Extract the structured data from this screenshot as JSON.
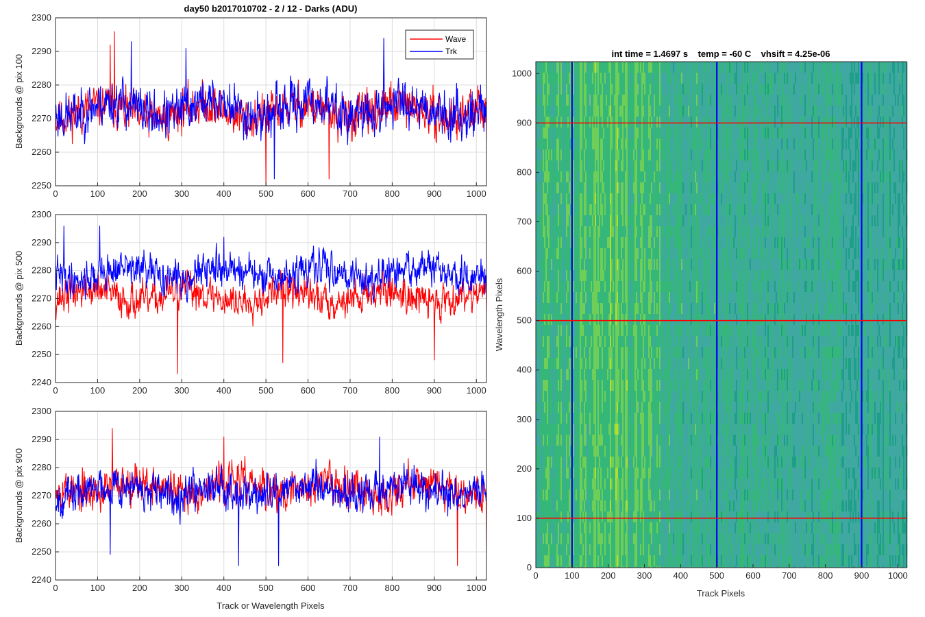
{
  "figure_title": "day50 b2017010702 - 2 / 12 - Darks (ADU)",
  "colors": {
    "wave": "#ff0000",
    "trk": "#0000ff",
    "axis": "#262626",
    "grid": "#dcdcdc"
  },
  "chart_data": [
    {
      "type": "line",
      "title": "day50 b2017010702 - 2 / 12 - Darks (ADU)",
      "ylabel": "Backgrounds @ pix 100",
      "xlabel": "",
      "xlim": [
        0,
        1024
      ],
      "ylim": [
        2250,
        2300
      ],
      "xticks": [
        "0",
        "100",
        "200",
        "300",
        "400",
        "500",
        "600",
        "700",
        "800",
        "900",
        "1000"
      ],
      "yticks": [
        "2250",
        "2260",
        "2270",
        "2280",
        "2290",
        "2300"
      ],
      "grid": true,
      "legend": {
        "position": "top-right",
        "entries": [
          "Wave",
          "Trk"
        ]
      },
      "series": [
        {
          "name": "Wave",
          "color": "#ff0000",
          "mean": 2272,
          "spread": 4.5,
          "seed": 11,
          "x": [
            0,
            130,
            140,
            290,
            500,
            650,
            900,
            1024
          ],
          "y": [
            2270,
            2292,
            2296,
            2275,
            2250,
            2252,
            2270,
            2263
          ]
        },
        {
          "name": "Trk",
          "color": "#0000ff",
          "mean": 2273,
          "spread": 5.0,
          "seed": 23,
          "x": [
            0,
            180,
            310,
            520,
            780,
            1024
          ],
          "y": [
            2272,
            2293,
            2291,
            2252,
            2294,
            2275
          ]
        }
      ]
    },
    {
      "type": "line",
      "title": "",
      "ylabel": "Backgrounds @ pix 500",
      "xlabel": "",
      "xlim": [
        0,
        1024
      ],
      "ylim": [
        2240,
        2300
      ],
      "xticks": [
        "0",
        "100",
        "200",
        "300",
        "400",
        "500",
        "600",
        "700",
        "800",
        "900",
        "1000"
      ],
      "yticks": [
        "2240",
        "2250",
        "2260",
        "2270",
        "2280",
        "2290",
        "2300"
      ],
      "grid": true,
      "series": [
        {
          "name": "",
          "color": "#ff0000",
          "mean": 2271,
          "spread": 4.5,
          "seed": 37,
          "x": [
            0,
            290,
            540,
            900,
            1024
          ],
          "y": [
            2272,
            2243,
            2247,
            2248,
            2265
          ]
        },
        {
          "name": "",
          "color": "#0000ff",
          "mean": 2279,
          "spread": 4.5,
          "seed": 41,
          "x": [
            0,
            20,
            105,
            400,
            1024
          ],
          "y": [
            2283,
            2296,
            2296,
            2292,
            2273
          ]
        }
      ]
    },
    {
      "type": "line",
      "title": "",
      "ylabel": "Backgrounds @ pix 900",
      "xlabel": "Track or Wavelength Pixels",
      "xlim": [
        0,
        1024
      ],
      "ylim": [
        2240,
        2300
      ],
      "xticks": [
        "0",
        "100",
        "200",
        "300",
        "400",
        "500",
        "600",
        "700",
        "800",
        "900",
        "1000"
      ],
      "yticks": [
        "2240",
        "2250",
        "2260",
        "2270",
        "2280",
        "2290",
        "2300"
      ],
      "grid": true,
      "series": [
        {
          "name": "",
          "color": "#ff0000",
          "mean": 2273,
          "spread": 5.0,
          "seed": 53,
          "x": [
            0,
            135,
            400,
            955,
            1024
          ],
          "y": [
            2270,
            2294,
            2291,
            2245,
            2250
          ]
        },
        {
          "name": "",
          "color": "#0000ff",
          "mean": 2272,
          "spread": 4.8,
          "seed": 67,
          "x": [
            0,
            130,
            435,
            530,
            770,
            1024
          ],
          "y": [
            2265,
            2249,
            2245,
            2245,
            2291,
            2272
          ]
        }
      ]
    },
    {
      "type": "heatmap",
      "title": "int time = 1.4697 s    temp = -60 C    vhsift = 4.25e-06",
      "xlabel": "Track Pixels",
      "ylabel": "Wavelength Pixels",
      "xlim": [
        0,
        1024
      ],
      "ylim": [
        0,
        1024
      ],
      "xticks": [
        "0",
        "100",
        "200",
        "300",
        "400",
        "500",
        "600",
        "700",
        "800",
        "900",
        "1000"
      ],
      "yticks": [
        "0",
        "100",
        "200",
        "300",
        "400",
        "500",
        "600",
        "700",
        "800",
        "900",
        "1000"
      ],
      "colormap": [
        "#1f9e89",
        "#3fa8a0",
        "#35b779",
        "#6ece58",
        "#b5de2b"
      ],
      "vertical_markers": {
        "color": "#0000ff",
        "x": [
          100,
          500,
          900
        ]
      },
      "horizontal_markers": {
        "color": "#ff0000",
        "y": [
          100,
          500,
          900
        ]
      }
    }
  ]
}
